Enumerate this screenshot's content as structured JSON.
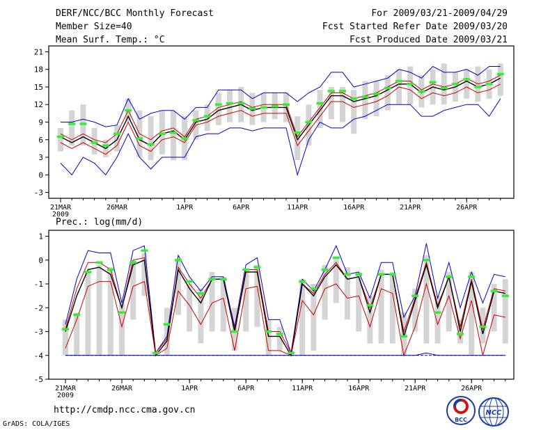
{
  "header": {
    "title": "DERF/NCC/BCC Monthly Forecast",
    "member_size": "Member Size=40",
    "variable": "Mean Surf. Temp.: °C",
    "period": "For 2009/03/21-2009/04/29",
    "started": "Fcst Started Refer Date 2009/03/20",
    "produced": "Fcst Produced Date 2009/03/21"
  },
  "footer": {
    "url": "http://cmdp.ncc.cma.gov.cn",
    "grads": "GrADS: COLA/IGES",
    "logo_bcc": "BCC",
    "logo_ncc": "NCC"
  },
  "colors": {
    "max_min": "#0000cc",
    "quartile": "#cc0000",
    "median": "#000000",
    "box": "#d4d4d4",
    "obs": "#33ee33"
  },
  "chart_data": [
    {
      "type": "line",
      "title": "Mean Surf. Temp.: °C",
      "ylim": [
        -4,
        22
      ],
      "yticks": [
        -3,
        0,
        3,
        6,
        9,
        12,
        15,
        18,
        21
      ],
      "ytick_labels": [
        "-3",
        "0",
        "3",
        "6",
        "9",
        "12",
        "15",
        "18",
        "21"
      ],
      "xticks": [
        {
          "day": 0,
          "label": "21MAR"
        },
        {
          "day": 5,
          "label": "26MAR"
        },
        {
          "day": 11,
          "label": "1APR"
        },
        {
          "day": 16,
          "label": "6APR"
        },
        {
          "day": 21,
          "label": "11APR"
        },
        {
          "day": 26,
          "label": "16APR"
        },
        {
          "day": 31,
          "label": "21APR"
        },
        {
          "day": 36,
          "label": "26APR"
        }
      ],
      "year_label": "2009",
      "box_low": [
        4.0,
        5.0,
        5.0,
        3.5,
        3.0,
        4.0,
        9.0,
        3.0,
        2.5,
        3.5,
        2.5,
        2.5,
        6.0,
        7.5,
        8.5,
        9.0,
        9.0,
        8.5,
        9.0,
        9.5,
        9.0,
        2.5,
        5.0,
        8.0,
        9.5,
        9.0,
        7.0,
        9.5,
        10.0,
        11.0,
        12.0,
        12.0,
        11.5,
        12.0,
        12.0,
        12.5,
        13.0,
        12.5,
        13.0,
        13.5
      ],
      "box_high": [
        8.0,
        11.0,
        12.0,
        8.0,
        6.0,
        8.5,
        13.0,
        11.0,
        10.0,
        11.0,
        11.0,
        10.0,
        11.0,
        12.0,
        14.0,
        14.5,
        15.0,
        14.0,
        14.0,
        14.0,
        14.0,
        10.0,
        12.0,
        14.5,
        15.0,
        15.0,
        14.5,
        16.0,
        16.0,
        17.0,
        18.0,
        18.5,
        17.0,
        18.0,
        19.0,
        17.5,
        18.0,
        18.5,
        18.0,
        19.0
      ],
      "series": [
        {
          "name": "max",
          "values": [
            9.0,
            9.0,
            9.5,
            9.0,
            8.2,
            8.5,
            13.0,
            9.5,
            10.5,
            11.0,
            11.0,
            9.5,
            11.5,
            11.5,
            14.5,
            14.5,
            14.5,
            13.0,
            14.0,
            14.0,
            14.0,
            12.5,
            14.0,
            15.0,
            17.5,
            17.5,
            15.0,
            15.5,
            16.0,
            16.5,
            18.0,
            17.5,
            16.5,
            18.5,
            17.5,
            17.5,
            18.0,
            17.0,
            18.5,
            18.5
          ]
        },
        {
          "name": "q75",
          "values": [
            7.0,
            6.0,
            7.0,
            6.0,
            5.5,
            7.0,
            11.0,
            7.0,
            6.0,
            7.5,
            8.0,
            6.5,
            9.5,
            10.0,
            11.5,
            12.0,
            12.5,
            11.5,
            12.0,
            12.0,
            12.0,
            6.5,
            9.0,
            11.5,
            14.0,
            14.0,
            13.0,
            13.5,
            14.0,
            15.0,
            16.0,
            16.0,
            14.5,
            15.5,
            15.0,
            15.5,
            16.5,
            15.5,
            16.0,
            17.0
          ]
        },
        {
          "name": "median",
          "values": [
            6.5,
            5.5,
            6.5,
            5.5,
            4.5,
            6.0,
            10.0,
            6.0,
            5.0,
            7.0,
            7.5,
            6.0,
            9.0,
            9.5,
            11.0,
            11.5,
            12.0,
            11.0,
            11.5,
            11.5,
            11.5,
            6.0,
            8.5,
            11.0,
            13.5,
            13.5,
            12.5,
            13.0,
            13.5,
            14.5,
            15.5,
            15.5,
            14.0,
            15.0,
            14.5,
            15.0,
            16.0,
            15.0,
            15.5,
            16.5
          ]
        },
        {
          "name": "q25",
          "values": [
            5.5,
            4.5,
            5.5,
            4.5,
            3.5,
            5.0,
            9.0,
            5.0,
            4.0,
            6.0,
            6.5,
            5.5,
            8.5,
            9.0,
            10.0,
            10.5,
            11.0,
            10.0,
            10.5,
            10.5,
            10.5,
            5.0,
            7.5,
            10.0,
            12.5,
            12.5,
            11.5,
            12.0,
            12.5,
            13.5,
            15.0,
            14.5,
            13.0,
            14.0,
            13.5,
            14.0,
            15.0,
            14.0,
            14.5,
            15.5
          ]
        },
        {
          "name": "min",
          "values": [
            2.0,
            0.0,
            3.0,
            2.0,
            0.0,
            3.0,
            7.0,
            3.0,
            1.0,
            3.0,
            3.0,
            3.0,
            6.5,
            7.0,
            7.0,
            8.0,
            8.0,
            7.5,
            8.0,
            8.0,
            8.0,
            0.0,
            6.0,
            9.0,
            8.0,
            8.0,
            9.5,
            10.0,
            11.0,
            12.0,
            12.0,
            12.0,
            10.0,
            10.0,
            11.0,
            11.5,
            12.0,
            12.0,
            10.0,
            13.0
          ]
        },
        {
          "name": "obs",
          "values": [
            6.5,
            8.7,
            8.7,
            5.5,
            5.0,
            7.0,
            11.0,
            6.2,
            5.2,
            7.0,
            7.2,
            6.2,
            9.3,
            10.0,
            12.0,
            12.2,
            12.2,
            11.3,
            11.5,
            11.7,
            12.0,
            7.2,
            9.0,
            12.2,
            14.3,
            14.3,
            13.0,
            13.3,
            13.8,
            14.8,
            16.0,
            15.5,
            14.2,
            15.8,
            14.8,
            15.5,
            16.3,
            15.0,
            15.5,
            17.2
          ]
        }
      ]
    },
    {
      "type": "line",
      "title": "Prec.: log(mm/d)",
      "ylim": [
        -5,
        1.25
      ],
      "yticks": [
        -5,
        -4,
        -3,
        -2,
        -1,
        0,
        1
      ],
      "ytick_labels": [
        "-5",
        "-4",
        "-3",
        "-2",
        "-1",
        "0",
        "1"
      ],
      "xticks": [
        {
          "day": 0,
          "label": "21MAR"
        },
        {
          "day": 5,
          "label": "26MAR"
        },
        {
          "day": 11,
          "label": "1APR"
        },
        {
          "day": 16,
          "label": "6APR"
        },
        {
          "day": 21,
          "label": "11APR"
        },
        {
          "day": 26,
          "label": "16APR"
        },
        {
          "day": 31,
          "label": "21APR"
        },
        {
          "day": 36,
          "label": "26APR"
        }
      ],
      "year_label": "2009",
      "box_low": [
        -4.0,
        -4.0,
        -4.0,
        -4.0,
        -4.0,
        -4.0,
        -2.5,
        -1.5,
        -4.0,
        -4.0,
        -2.3,
        -3.0,
        -3.5,
        -3.0,
        -3.0,
        -3.8,
        -3.0,
        -2.8,
        -4.0,
        -3.8,
        -4.0,
        -4.0,
        -3.8,
        -2.5,
        -1.8,
        -2.5,
        -3.0,
        -3.5,
        -3.5,
        -3.5,
        -4.0,
        -3.0,
        -3.5,
        -3.5,
        -3.0,
        -3.5,
        -4.0,
        -3.5,
        -3.0,
        -3.5
      ],
      "box_high": [
        -2.5,
        -2.2,
        -0.5,
        -0.2,
        -0.3,
        -1.8,
        0.0,
        0.3,
        -4.0,
        -2.0,
        0.0,
        -1.0,
        -1.2,
        -0.5,
        -0.7,
        -2.0,
        -0.5,
        -0.2,
        -2.5,
        -2.8,
        -3.8,
        -0.8,
        -1.0,
        -0.2,
        0.1,
        -0.3,
        -0.5,
        -1.5,
        -0.4,
        -0.5,
        -2.2,
        -1.2,
        0.2,
        -1.5,
        -0.5,
        -2.5,
        -0.5,
        -2.0,
        -1.0,
        -0.8
      ],
      "series": [
        {
          "name": "max",
          "values": [
            -2.7,
            -0.8,
            0.4,
            0.3,
            0.3,
            -1.8,
            0.4,
            0.6,
            -3.9,
            -3.2,
            0.2,
            -0.7,
            -1.3,
            -0.7,
            -0.7,
            -2.8,
            -0.2,
            0.1,
            -2.5,
            -2.5,
            -3.9,
            -0.8,
            -1.3,
            -0.4,
            0.6,
            -0.6,
            -0.5,
            -1.6,
            -0.1,
            -0.1,
            -2.4,
            -1.5,
            0.7,
            -1.6,
            -0.1,
            -2.0,
            -0.5,
            -1.8,
            -0.6,
            -0.7
          ]
        },
        {
          "name": "q75",
          "values": [
            -2.9,
            -1.2,
            -0.1,
            -0.1,
            -0.4,
            -2.0,
            0.0,
            0.1,
            -3.9,
            -3.3,
            -0.3,
            -1.0,
            -1.6,
            -0.8,
            -0.8,
            -2.9,
            -0.4,
            -0.4,
            -3.0,
            -3.0,
            -3.9,
            -1.0,
            -1.4,
            -0.6,
            -0.1,
            -0.8,
            -0.7,
            -2.0,
            -0.6,
            -0.6,
            -3.0,
            -1.6,
            -0.1,
            -1.9,
            -0.7,
            -2.8,
            -0.8,
            -2.9,
            -1.2,
            -1.3
          ]
        },
        {
          "name": "median",
          "values": [
            -3.0,
            -1.5,
            -0.4,
            -0.3,
            -0.6,
            -2.0,
            -0.2,
            0.0,
            -4.0,
            -3.4,
            -0.4,
            -1.2,
            -1.8,
            -0.8,
            -0.8,
            -3.0,
            -0.5,
            -0.5,
            -3.2,
            -3.2,
            -4.0,
            -1.0,
            -1.5,
            -0.7,
            -0.2,
            -0.8,
            -0.7,
            -2.2,
            -0.6,
            -0.6,
            -3.2,
            -1.7,
            -0.2,
            -2.0,
            -0.7,
            -3.0,
            -0.9,
            -3.1,
            -1.3,
            -1.4
          ]
        },
        {
          "name": "q25",
          "values": [
            -3.7,
            -2.5,
            -1.1,
            -0.9,
            -0.9,
            -2.8,
            -1.1,
            -0.9,
            -4.0,
            -3.7,
            -1.3,
            -1.9,
            -2.7,
            -1.8,
            -1.6,
            -3.8,
            -1.2,
            -1.1,
            -3.8,
            -3.8,
            -4.0,
            -1.7,
            -2.3,
            -1.2,
            -1.0,
            -1.6,
            -1.5,
            -2.8,
            -1.2,
            -1.4,
            -4.0,
            -2.8,
            -1.0,
            -2.7,
            -1.5,
            -3.3,
            -1.7,
            -4.0,
            -2.3,
            -2.4
          ]
        },
        {
          "name": "min",
          "values": [
            -4.0,
            -4.0,
            -4.0,
            -4.0,
            -4.0,
            -4.0,
            -4.0,
            -4.0,
            -4.0,
            -4.0,
            -4.0,
            -4.0,
            -4.0,
            -4.0,
            -4.0,
            -4.0,
            -4.0,
            -4.0,
            -4.0,
            -4.0,
            -4.0,
            -4.0,
            -4.0,
            -4.0,
            -4.0,
            -4.0,
            -4.0,
            -4.0,
            -4.0,
            -4.0,
            -4.0,
            -4.0,
            -3.9,
            -4.0,
            -4.0,
            -4.0,
            -4.0,
            -4.0,
            -4.0,
            -4.0
          ]
        },
        {
          "name": "obs",
          "values": [
            -2.9,
            -2.3,
            -0.5,
            -0.1,
            -0.4,
            -2.2,
            -0.1,
            0.4,
            -3.9,
            -2.7,
            0.0,
            -0.9,
            -1.4,
            -0.8,
            -0.8,
            -3.0,
            -0.4,
            -0.3,
            -3.0,
            -3.1,
            -3.9,
            -0.9,
            -1.2,
            -0.4,
            0.1,
            -0.6,
            -0.6,
            -1.9,
            -0.6,
            -0.6,
            -3.2,
            -1.5,
            0.0,
            -2.2,
            -0.7,
            -3.1,
            -0.7,
            -2.8,
            -1.3,
            -1.5
          ]
        }
      ]
    }
  ]
}
